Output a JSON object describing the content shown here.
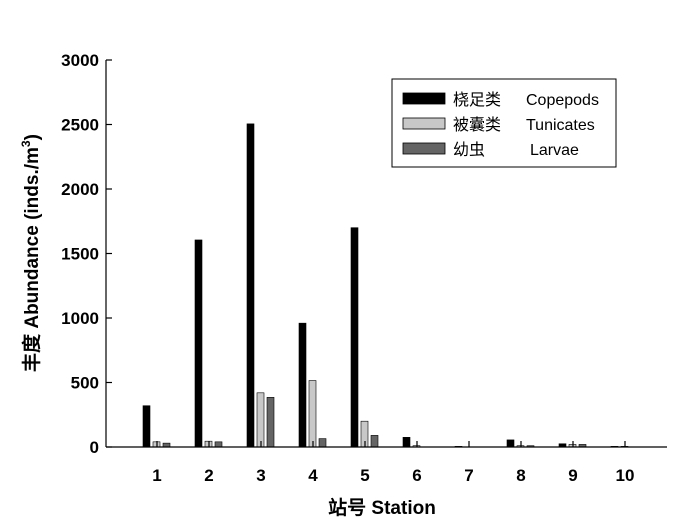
{
  "chart_data": {
    "type": "bar",
    "categories": [
      "1",
      "2",
      "3",
      "4",
      "5",
      "6",
      "7",
      "8",
      "9",
      "10"
    ],
    "series": [
      {
        "name": "桡足类 Copepods",
        "label_cn": "桡足类",
        "label_en": "Copepods",
        "color": "#000000",
        "values": [
          320,
          1605,
          2505,
          960,
          1700,
          75,
          5,
          55,
          25,
          5
        ]
      },
      {
        "name": "被囊类 Tunicates",
        "label_cn": "被囊类",
        "label_en": "Tunicates",
        "color": "#c8c8c8",
        "values": [
          40,
          45,
          420,
          515,
          200,
          10,
          0,
          10,
          20,
          5
        ]
      },
      {
        "name": "幼虫 Larvae",
        "label_cn": "幼虫",
        "label_en": "Larvae",
        "color": "#646464",
        "values": [
          30,
          40,
          385,
          65,
          90,
          0,
          0,
          10,
          20,
          0
        ]
      }
    ],
    "ylim": [
      0,
      3000
    ],
    "yticks": [
      "0",
      "500",
      "1000",
      "1500",
      "2000",
      "2500",
      "3000"
    ],
    "xlabel": "站号  Station",
    "ylabel": "丰度  Abundance (inds./m",
    "ylabel_sup": "3",
    "ylabel_close": ")",
    "legend_position": "top-right",
    "grid": false
  }
}
